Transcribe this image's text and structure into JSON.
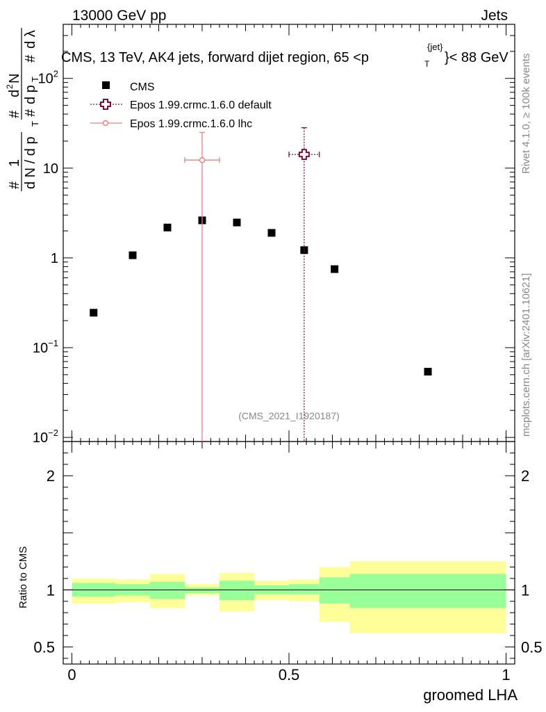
{
  "header": {
    "left": "13000 GeV pp",
    "right": "Jets"
  },
  "title": {
    "main": "CMS, 13 TeV, AK4 jets, forward dijet region, 65 <p",
    "sub": "T",
    "sup": "{jet}",
    "tail": "}< 88 GeV"
  },
  "side_labels": {
    "rivet": "Rivet 4.1.0, ≥ 100k events",
    "mcplots": "mcplots.cern.ch [arXiv:2401.10621]"
  },
  "watermark": "(CMS_2021_I1920187)",
  "y_axis": {
    "hash1": "#",
    "one": "1",
    "hash2": "#",
    "dn": "d N / d p",
    "dn_sub": "T",
    "hash3": "#",
    "d2n_top": "d",
    "d2n_sup": "2",
    "d2n_rest": "N",
    "hash4": "#",
    "dpt": "d p",
    "dpt_sub": "T",
    "dlambda": "d λ"
  },
  "ratio_ylabel": "Ratio to CMS",
  "xlabel": "groomed LHA",
  "legend": [
    {
      "label": "CMS"
    },
    {
      "label": "Epos 1.99.crmc.1.6.0 default"
    },
    {
      "label": "Epos 1.99.crmc.1.6.0 lhc"
    }
  ],
  "colors": {
    "cms": "#000000",
    "default": "#7f0b3b",
    "lhc": "#e88080",
    "band_inner": "#99ff99",
    "band_outer": "#ffff99"
  },
  "main_ticks": [
    {
      "value": 100,
      "base": "10",
      "exp": "2"
    },
    {
      "value": 10,
      "base": "10",
      "exp": ""
    },
    {
      "value": 1,
      "base": "1",
      "exp": ""
    },
    {
      "value": 0.1,
      "base": "10",
      "exp": "−1"
    },
    {
      "value": 0.01,
      "base": "10",
      "exp": "−2"
    }
  ],
  "ratio_ticks": [
    {
      "value": 2,
      "label": "2"
    },
    {
      "value": 1,
      "label": "1"
    },
    {
      "value": 0.5,
      "label": "0.5"
    }
  ],
  "x_ticks": [
    {
      "value": 0,
      "label": "0"
    },
    {
      "value": 0.5,
      "label": "0.5"
    },
    {
      "value": 1,
      "label": "1"
    }
  ],
  "chart_data": {
    "type": "scatter",
    "title": "CMS, 13 TeV, AK4 jets, forward dijet region, 65 < pT{jet} < 88 GeV",
    "xlabel": "groomed LHA",
    "ylabel": "1/N dN/dλ",
    "xlim": [
      -0.02,
      1.02
    ],
    "ylim": [
      0.009,
      400
    ],
    "yscale": "log",
    "bin_edges": [
      0,
      0.1,
      0.18,
      0.26,
      0.34,
      0.42,
      0.5,
      0.57,
      0.64,
      1.0
    ],
    "series": [
      {
        "name": "CMS",
        "x": [
          0.05,
          0.14,
          0.22,
          0.3,
          0.38,
          0.46,
          0.535,
          0.605,
          0.82
        ],
        "y": [
          0.245,
          1.07,
          2.18,
          2.62,
          2.48,
          1.9,
          1.22,
          0.75,
          0.054
        ]
      },
      {
        "name": "Epos 1.99.crmc.1.6.0 default",
        "x": [
          0.535
        ],
        "y": [
          14.2
        ],
        "xerr": [
          [
            0.035,
            0.035
          ]
        ],
        "yerr": [
          [
            14.2,
            14.0
          ]
        ]
      },
      {
        "name": "Epos 1.99.crmc.1.6.0 lhc",
        "x": [
          0.3
        ],
        "y": [
          12.3
        ],
        "xerr": [
          [
            0.04,
            0.04
          ]
        ],
        "yerr": [
          [
            12.3,
            12.7
          ]
        ]
      }
    ],
    "ratio": {
      "ylabel": "Ratio to CMS",
      "ylim": [
        0.35,
        2.3
      ],
      "bins": [
        {
          "lo": 0.0,
          "hi": 0.1,
          "inner": [
            0.94,
            1.06
          ],
          "outer": [
            0.88,
            1.1
          ]
        },
        {
          "lo": 0.1,
          "hi": 0.18,
          "inner": [
            0.95,
            1.05
          ],
          "outer": [
            0.89,
            1.09
          ]
        },
        {
          "lo": 0.18,
          "hi": 0.26,
          "inner": [
            0.92,
            1.07
          ],
          "outer": [
            0.84,
            1.14
          ]
        },
        {
          "lo": 0.26,
          "hi": 0.34,
          "inner": [
            0.97,
            1.02
          ],
          "outer": [
            0.95,
            1.05
          ]
        },
        {
          "lo": 0.34,
          "hi": 0.42,
          "inner": [
            0.91,
            1.08
          ],
          "outer": [
            0.81,
            1.15
          ]
        },
        {
          "lo": 0.42,
          "hi": 0.5,
          "inner": [
            0.96,
            1.04
          ],
          "outer": [
            0.91,
            1.08
          ]
        },
        {
          "lo": 0.5,
          "hi": 0.57,
          "inner": [
            0.96,
            1.05
          ],
          "outer": [
            0.9,
            1.09
          ]
        },
        {
          "lo": 0.57,
          "hi": 0.64,
          "inner": [
            0.88,
            1.11
          ],
          "outer": [
            0.72,
            1.2
          ]
        },
        {
          "lo": 0.64,
          "hi": 1.0,
          "inner": [
            0.84,
            1.14
          ],
          "outer": [
            0.62,
            1.25
          ]
        }
      ]
    }
  }
}
